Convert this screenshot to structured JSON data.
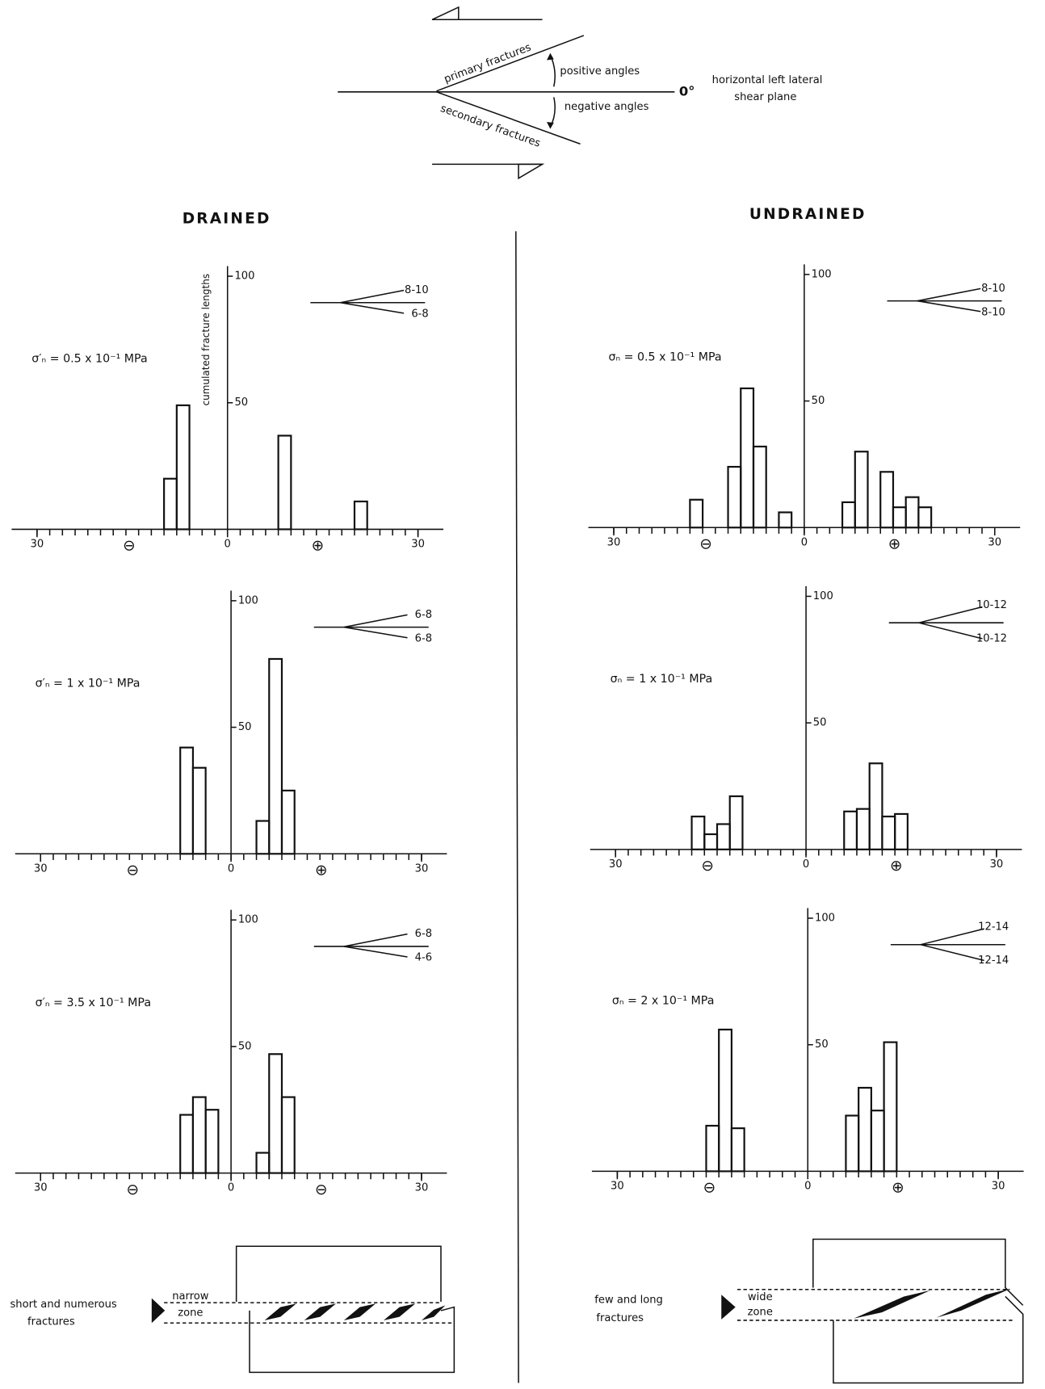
{
  "diagram": {
    "primary_fractures": "primary fractures",
    "positive_angles": "positive angles",
    "zero": "0°",
    "plane_line1": "horizontal left lateral",
    "plane_line2": "shear plane",
    "negative_angles": "negative angles",
    "secondary_fractures": "secondary fractures"
  },
  "headings": {
    "drained": "DRAINED",
    "undrained": "UNDRAINED"
  },
  "bottom": {
    "drained": {
      "description": [
        "short and numerous",
        "fractures"
      ],
      "zone": [
        "narrow",
        "zone"
      ]
    },
    "undrained": {
      "description": [
        "few and long",
        "fractures"
      ],
      "zone": [
        "wide",
        "zone"
      ]
    }
  },
  "chart_data": [
    {
      "type": "histogram",
      "ylabel": "cumulated fracture lengths",
      "stress_label": "σ′ₙ = 0.5 x 10⁻¹ MPa",
      "fan_labels": [
        "8-10",
        "6-8"
      ],
      "sign_labels": [
        "⊖",
        "⊕"
      ],
      "bins": [
        -30,
        -28,
        -26,
        -24,
        -22,
        -20,
        -18,
        -16,
        -14,
        -12,
        -10,
        -8,
        -6,
        -4,
        -2,
        0,
        2,
        4,
        6,
        8,
        10,
        12,
        14,
        16,
        18,
        20,
        22,
        24,
        26,
        28,
        30
      ],
      "counts": [
        0,
        0,
        0,
        0,
        0,
        0,
        0,
        0,
        0,
        0,
        20,
        49,
        0,
        0,
        0,
        0,
        0,
        0,
        0,
        37,
        0,
        0,
        0,
        0,
        0,
        11,
        0,
        0,
        0,
        0
      ],
      "xlim": [
        -34,
        34
      ],
      "ylim": [
        0,
        104
      ],
      "xticks": [
        {
          "value": -30,
          "label": "30"
        },
        0,
        30
      ],
      "yticks": [
        50,
        100
      ]
    },
    {
      "type": "histogram",
      "stress_label": "σ′ₙ = 1 x 10⁻¹ MPa",
      "fan_labels": [
        "6-8",
        "6-8"
      ],
      "sign_labels": [
        "⊖",
        "⊕"
      ],
      "bins": [
        -30,
        -28,
        -26,
        -24,
        -22,
        -20,
        -18,
        -16,
        -14,
        -12,
        -10,
        -8,
        -6,
        -4,
        -2,
        0,
        2,
        4,
        6,
        8,
        10,
        12,
        14,
        16,
        18,
        20,
        22,
        24,
        26,
        28,
        30
      ],
      "counts": [
        0,
        0,
        0,
        0,
        0,
        0,
        0,
        0,
        0,
        0,
        0,
        42,
        34,
        0,
        0,
        0,
        0,
        13,
        77,
        25,
        0,
        0,
        0,
        0,
        0,
        0,
        0,
        0,
        0,
        0
      ],
      "xlim": [
        -34,
        34
      ],
      "ylim": [
        0,
        104
      ],
      "xticks": [
        {
          "value": -30,
          "label": "30"
        },
        0,
        30
      ],
      "yticks": [
        50,
        100
      ]
    },
    {
      "type": "histogram",
      "stress_label": "σ′ₙ = 3.5 x 10⁻¹ MPa",
      "fan_labels": [
        "6-8",
        "4-6"
      ],
      "sign_labels": [
        "⊖",
        "⊖"
      ],
      "bins": [
        -30,
        -28,
        -26,
        -24,
        -22,
        -20,
        -18,
        -16,
        -14,
        -12,
        -10,
        -8,
        -6,
        -4,
        -2,
        0,
        2,
        4,
        6,
        8,
        10,
        12,
        14,
        16,
        18,
        20,
        22,
        24,
        26,
        28,
        30
      ],
      "counts": [
        0,
        0,
        0,
        0,
        0,
        0,
        0,
        0,
        0,
        0,
        0,
        23,
        30,
        25,
        0,
        0,
        0,
        8,
        47,
        30,
        0,
        0,
        0,
        0,
        0,
        0,
        0,
        0,
        0,
        0
      ],
      "xlim": [
        -34,
        34
      ],
      "ylim": [
        0,
        104
      ],
      "xticks": [
        {
          "value": -30,
          "label": "30"
        },
        0,
        30
      ],
      "yticks": [
        50,
        100
      ]
    },
    {
      "type": "histogram",
      "stress_label": "σₙ = 0.5 x 10⁻¹ MPa",
      "fan_labels": [
        "8-10",
        "8-10"
      ],
      "sign_labels": [
        "⊖",
        "⊕"
      ],
      "bins": [
        -30,
        -28,
        -26,
        -24,
        -22,
        -20,
        -18,
        -16,
        -14,
        -12,
        -10,
        -8,
        -6,
        -4,
        -2,
        0,
        2,
        4,
        6,
        8,
        10,
        12,
        14,
        16,
        18,
        20,
        22,
        24,
        26,
        28,
        30
      ],
      "counts": [
        0,
        0,
        0,
        0,
        0,
        0,
        11,
        0,
        0,
        24,
        55,
        32,
        0,
        6,
        0,
        0,
        0,
        0,
        10,
        30,
        0,
        22,
        8,
        12,
        8,
        0,
        0,
        0,
        0,
        0
      ],
      "xlim": [
        -34,
        34
      ],
      "ylim": [
        0,
        104
      ],
      "xticks": [
        {
          "value": -30,
          "label": "30"
        },
        0,
        30
      ],
      "yticks": [
        50,
        100
      ]
    },
    {
      "type": "histogram",
      "stress_label": "σₙ = 1 x 10⁻¹ MPa",
      "fan_labels": [
        "10-12",
        "10-12"
      ],
      "sign_labels": [
        "⊖",
        "⊕"
      ],
      "bins": [
        -30,
        -28,
        -26,
        -24,
        -22,
        -20,
        -18,
        -16,
        -14,
        -12,
        -10,
        -8,
        -6,
        -4,
        -2,
        0,
        2,
        4,
        6,
        8,
        10,
        12,
        14,
        16,
        18,
        20,
        22,
        24,
        26,
        28,
        30
      ],
      "counts": [
        0,
        0,
        0,
        0,
        0,
        0,
        13,
        6,
        10,
        21,
        0,
        0,
        0,
        0,
        0,
        0,
        0,
        0,
        15,
        16,
        34,
        13,
        14,
        0,
        0,
        0,
        0,
        0,
        0,
        0
      ],
      "xlim": [
        -34,
        34
      ],
      "ylim": [
        0,
        104
      ],
      "xticks": [
        {
          "value": -30,
          "label": "30"
        },
        0,
        30
      ],
      "yticks": [
        50,
        100
      ]
    },
    {
      "type": "histogram",
      "stress_label": "σₙ = 2 x 10⁻¹ MPa",
      "fan_labels": [
        "12-14",
        "12-14"
      ],
      "sign_labels": [
        "⊖",
        "⊕"
      ],
      "bins": [
        -30,
        -28,
        -26,
        -24,
        -22,
        -20,
        -18,
        -16,
        -14,
        -12,
        -10,
        -8,
        -6,
        -4,
        -2,
        0,
        2,
        4,
        6,
        8,
        10,
        12,
        14,
        16,
        18,
        20,
        22,
        24,
        26,
        28,
        30
      ],
      "counts": [
        0,
        0,
        0,
        0,
        0,
        0,
        0,
        18,
        56,
        17,
        0,
        0,
        0,
        0,
        0,
        0,
        0,
        0,
        22,
        33,
        24,
        51,
        0,
        0,
        0,
        0,
        0,
        0,
        0,
        0
      ],
      "xlim": [
        -34,
        34
      ],
      "ylim": [
        0,
        104
      ],
      "xticks": [
        {
          "value": -30,
          "label": "30"
        },
        0,
        30
      ],
      "yticks": [
        50,
        100
      ]
    }
  ]
}
